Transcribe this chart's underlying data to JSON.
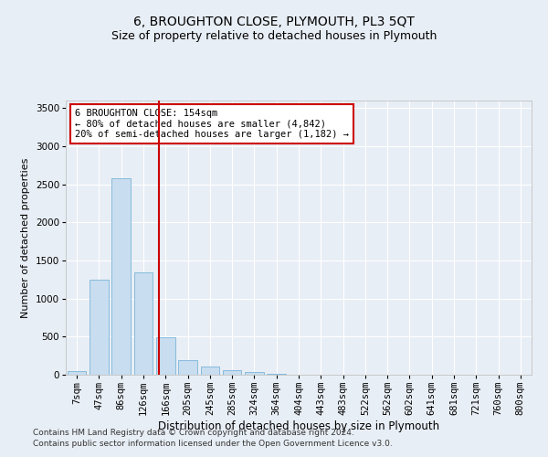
{
  "title": "6, BROUGHTON CLOSE, PLYMOUTH, PL3 5QT",
  "subtitle": "Size of property relative to detached houses in Plymouth",
  "xlabel": "Distribution of detached houses by size in Plymouth",
  "ylabel": "Number of detached properties",
  "categories": [
    "7sqm",
    "47sqm",
    "86sqm",
    "126sqm",
    "166sqm",
    "205sqm",
    "245sqm",
    "285sqm",
    "324sqm",
    "364sqm",
    "404sqm",
    "443sqm",
    "483sqm",
    "522sqm",
    "562sqm",
    "602sqm",
    "641sqm",
    "681sqm",
    "721sqm",
    "760sqm",
    "800sqm"
  ],
  "values": [
    50,
    1250,
    2575,
    1340,
    490,
    195,
    105,
    55,
    35,
    12,
    5,
    0,
    0,
    0,
    0,
    0,
    0,
    0,
    0,
    0,
    0
  ],
  "bar_color": "#c8ddef",
  "bar_edge_color": "#7ab5d8",
  "ylim": [
    0,
    3600
  ],
  "yticks": [
    0,
    500,
    1000,
    1500,
    2000,
    2500,
    3000,
    3500
  ],
  "vline_color": "#cc0000",
  "annotation_text": "6 BROUGHTON CLOSE: 154sqm\n← 80% of detached houses are smaller (4,842)\n20% of semi-detached houses are larger (1,182) →",
  "annotation_box_edgecolor": "#cc0000",
  "footer1": "Contains HM Land Registry data © Crown copyright and database right 2024.",
  "footer2": "Contains public sector information licensed under the Open Government Licence v3.0.",
  "background_color": "#e8eef5",
  "plot_background": "#e8eef5",
  "title_fontsize": 10,
  "subtitle_fontsize": 9,
  "xlabel_fontsize": 8.5,
  "ylabel_fontsize": 8,
  "tick_fontsize": 7.5,
  "annotation_fontsize": 7.5,
  "footer_fontsize": 6.5
}
